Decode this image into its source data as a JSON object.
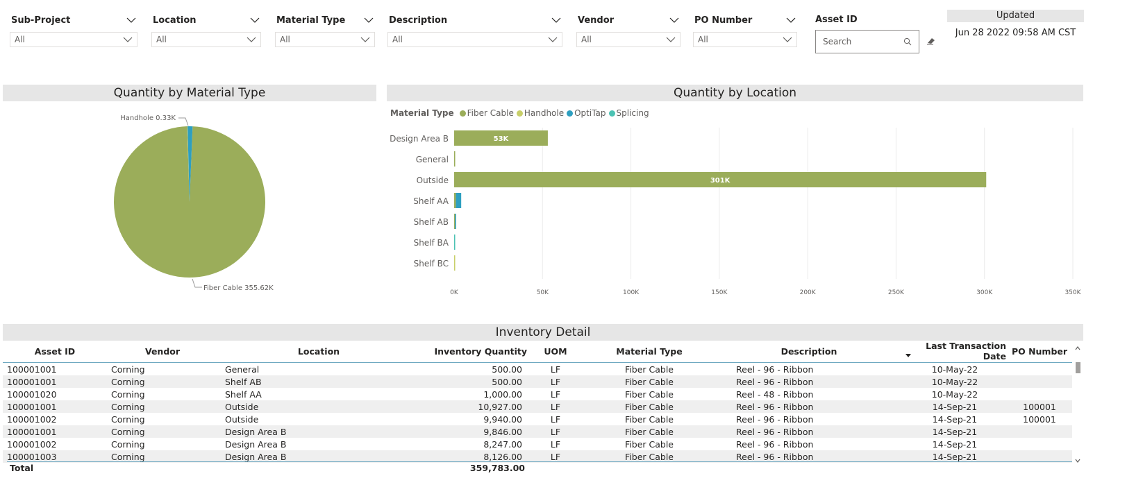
{
  "filters": [
    {
      "title": "Sub-Project",
      "value": "All"
    },
    {
      "title": "Location",
      "value": "All"
    },
    {
      "title": "Material Type",
      "value": "All"
    },
    {
      "title": "Description",
      "value": "All"
    },
    {
      "title": "Vendor",
      "value": "All"
    },
    {
      "title": "PO Number",
      "value": "All"
    }
  ],
  "asset_filter": {
    "title": "Asset ID",
    "placeholder": "Search"
  },
  "updated": {
    "label": "Updated",
    "value": "Jun 28 2022 09:58 AM CST"
  },
  "colors": {
    "fiber": "#9bad5a",
    "handhole": "#c8cf6a",
    "optitap": "#2e9fc0",
    "splicing": "#4cc2b3"
  },
  "chart_data": [
    {
      "type": "pie",
      "title": "Quantity by Material Type",
      "slices": [
        {
          "label": "Fiber Cable",
          "value": 355.62,
          "display": "Fiber Cable 355.62K"
        },
        {
          "label": "Handhole",
          "value": 0.33,
          "display": "Handhole 0.33K"
        },
        {
          "label": "OptiTap",
          "value": 3.83,
          "display": ""
        }
      ]
    },
    {
      "type": "bar",
      "title": "Quantity by Location",
      "legend_title": "Material Type",
      "legend": [
        "Fiber Cable",
        "Handhole",
        "OptiTap",
        "Splicing"
      ],
      "categories": [
        "Design Area B",
        "General",
        "Outside",
        "Shelf AA",
        "Shelf AB",
        "Shelf BA",
        "Shelf BC"
      ],
      "x_ticks": [
        "0K",
        "50K",
        "100K",
        "150K",
        "200K",
        "250K",
        "300K",
        "350K"
      ],
      "xlim": [
        0,
        350
      ],
      "bars": [
        {
          "category": "Design Area B",
          "segments": [
            {
              "series": "Fiber Cable",
              "value": 53
            }
          ],
          "label": "53K"
        },
        {
          "category": "General",
          "segments": [
            {
              "series": "Fiber Cable",
              "value": 0.5
            }
          ],
          "label": ""
        },
        {
          "category": "Outside",
          "segments": [
            {
              "series": "Fiber Cable",
              "value": 301
            }
          ],
          "label": "301K"
        },
        {
          "category": "Shelf AA",
          "segments": [
            {
              "series": "Fiber Cable",
              "value": 1
            },
            {
              "series": "OptiTap",
              "value": 3
            }
          ],
          "label": ""
        },
        {
          "category": "Shelf AB",
          "segments": [
            {
              "series": "Fiber Cable",
              "value": 0.5
            },
            {
              "series": "OptiTap",
              "value": 0.6
            }
          ],
          "label": ""
        },
        {
          "category": "Shelf BA",
          "segments": [
            {
              "series": "Splicing",
              "value": 0.5
            }
          ],
          "label": ""
        },
        {
          "category": "Shelf BC",
          "segments": [
            {
              "series": "Handhole",
              "value": 0.3
            }
          ],
          "label": ""
        }
      ]
    }
  ],
  "table": {
    "title": "Inventory Detail",
    "columns": [
      "Asset ID",
      "Vendor",
      "Location",
      "Inventory Quantity",
      "UOM",
      "Material Type",
      "Description",
      "Last Transaction Date",
      "PO Number"
    ],
    "rows": [
      [
        "100001001",
        "Corning",
        "General",
        "500.00",
        "LF",
        "Fiber Cable",
        "Reel - 96 - Ribbon",
        "10-May-22",
        ""
      ],
      [
        "100001001",
        "Corning",
        "Shelf AB",
        "500.00",
        "LF",
        "Fiber Cable",
        "Reel - 96 - Ribbon",
        "10-May-22",
        ""
      ],
      [
        "100001020",
        "Corning",
        "Shelf AA",
        "1,000.00",
        "LF",
        "Fiber Cable",
        "Reel - 48 - Ribbon",
        "10-May-22",
        ""
      ],
      [
        "100001001",
        "Corning",
        "Outside",
        "10,927.00",
        "LF",
        "Fiber Cable",
        "Reel - 96 - Ribbon",
        "14-Sep-21",
        "100001"
      ],
      [
        "100001002",
        "Corning",
        "Outside",
        "9,940.00",
        "LF",
        "Fiber Cable",
        "Reel - 96 - Ribbon",
        "14-Sep-21",
        "100001"
      ],
      [
        "100001001",
        "Corning",
        "Design Area B",
        "9,846.00",
        "LF",
        "Fiber Cable",
        "Reel - 96 - Ribbon",
        "14-Sep-21",
        ""
      ],
      [
        "100001002",
        "Corning",
        "Design Area B",
        "8,247.00",
        "LF",
        "Fiber Cable",
        "Reel - 96 - Ribbon",
        "14-Sep-21",
        ""
      ],
      [
        "100001003",
        "Corning",
        "Design Area B",
        "8,126.00",
        "LF",
        "Fiber Cable",
        "Reel - 96 - Ribbon",
        "14-Sep-21",
        ""
      ]
    ],
    "total_label": "Total",
    "total_value": "359,783.00"
  }
}
